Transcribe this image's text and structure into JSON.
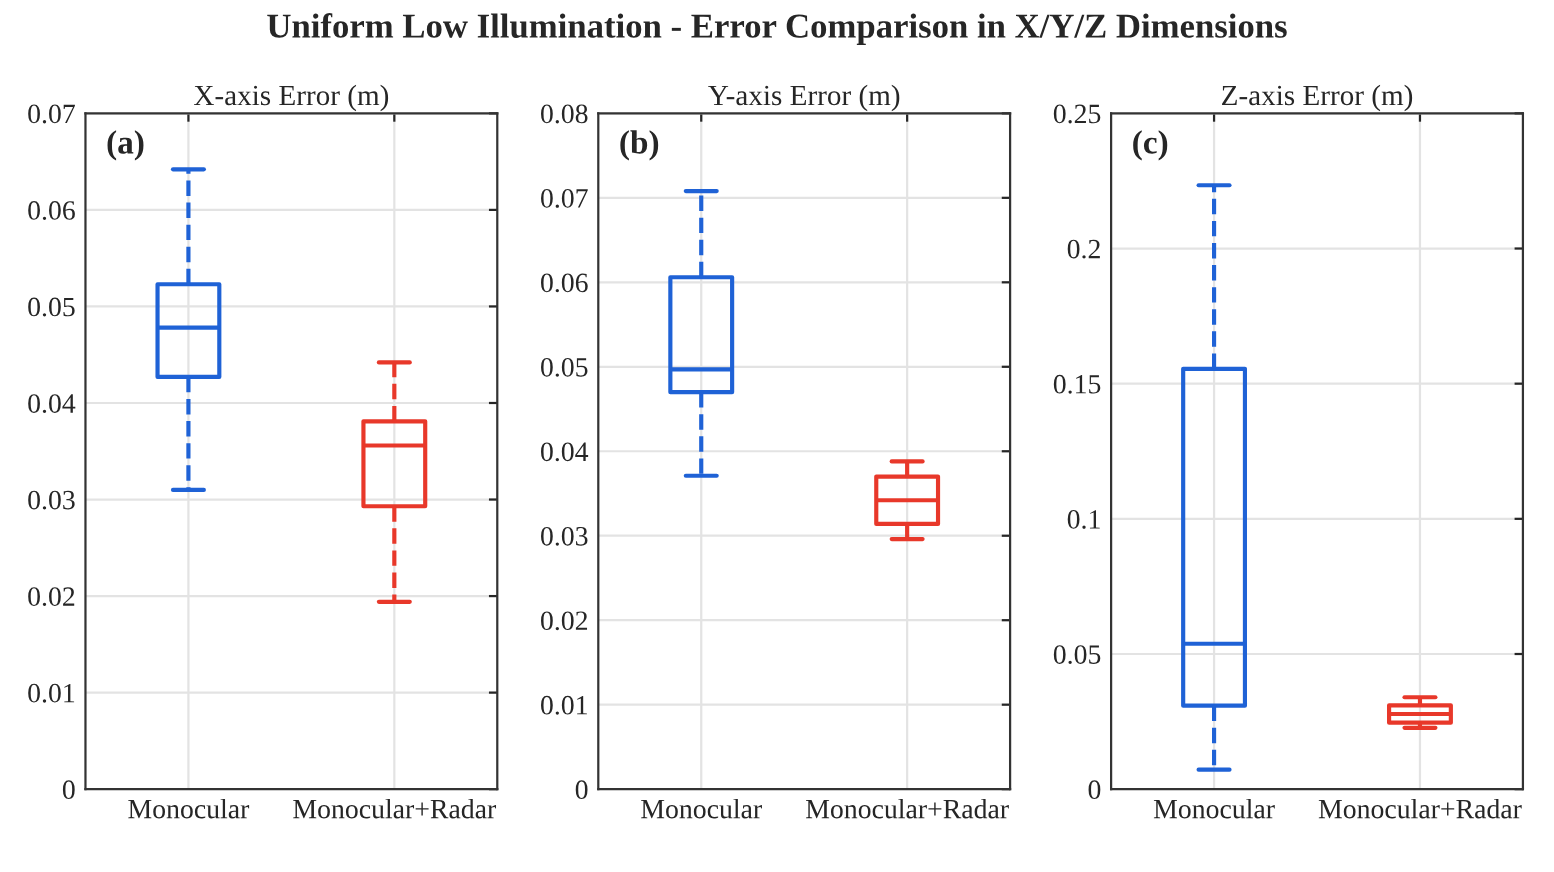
{
  "chart_data": [
    {
      "type": "box",
      "title": "X-axis Error (m)",
      "categories": [
        "Monocular",
        "Monocular+Radar"
      ],
      "colors": [
        "#1f62d6",
        "#e8382a"
      ],
      "ylim": [
        0,
        0.07
      ],
      "yticks": [
        0,
        0.01,
        0.02,
        0.03,
        0.04,
        0.05,
        0.06,
        0.07
      ],
      "grid": true,
      "line_style": "dashed",
      "annotations": [
        "Uniform Low Illumination - Error Comparison in X/Y/Z Dimensions",
        "(a)"
      ],
      "boxes": [
        {
          "low": 0.031,
          "q1": 0.0427,
          "median": 0.0478,
          "q3": 0.0523,
          "high": 0.0642
        },
        {
          "low": 0.0194,
          "q1": 0.0293,
          "median": 0.0356,
          "q3": 0.0381,
          "high": 0.0442
        }
      ]
    },
    {
      "type": "box",
      "title": "Y-axis Error (m)",
      "categories": [
        "Monocular",
        "Monocular+Radar"
      ],
      "colors": [
        "#1f62d6",
        "#e8382a"
      ],
      "ylim": [
        0,
        0.08
      ],
      "yticks": [
        0,
        0.01,
        0.02,
        0.03,
        0.04,
        0.05,
        0.06,
        0.07,
        0.08
      ],
      "grid": true,
      "line_style": "dashed",
      "annotations": [
        "(b)"
      ],
      "boxes": [
        {
          "low": 0.0371,
          "q1": 0.047,
          "median": 0.0497,
          "q3": 0.0606,
          "high": 0.0708
        },
        {
          "low": 0.0296,
          "q1": 0.0314,
          "median": 0.0342,
          "q3": 0.037,
          "high": 0.0388
        }
      ]
    },
    {
      "type": "box",
      "title": "Z-axis Error (m)",
      "categories": [
        "Monocular",
        "Monocular+Radar"
      ],
      "colors": [
        "#1f62d6",
        "#e8382a"
      ],
      "ylim": [
        0,
        0.25
      ],
      "yticks": [
        0,
        0.05,
        0.1,
        0.15,
        0.2,
        0.25
      ],
      "grid": true,
      "line_style": "dashed",
      "annotations": [
        "(c)"
      ],
      "boxes": [
        {
          "low": 0.0072,
          "q1": 0.0309,
          "median": 0.0538,
          "q3": 0.1555,
          "high": 0.2234
        },
        {
          "low": 0.0227,
          "q1": 0.0246,
          "median": 0.0278,
          "q3": 0.031,
          "high": 0.034
        }
      ]
    }
  ]
}
